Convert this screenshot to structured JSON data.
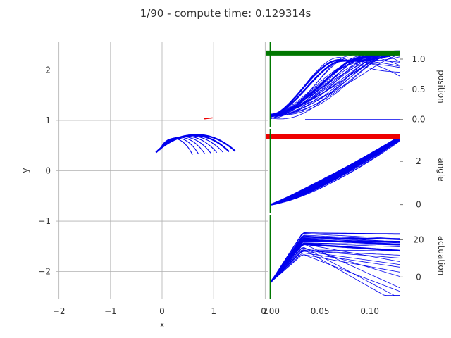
{
  "title": "1/90 - compute time: 0.129314s",
  "colors": {
    "traj": "#0000ee",
    "marker_red": "#ee0000",
    "marker_green": "#007700",
    "grid": "#b0b0b0"
  },
  "chart_data": [
    {
      "type": "line",
      "name": "xy",
      "xlabel": "x",
      "ylabel": "y",
      "xlim": [
        -2.05,
        2.05
      ],
      "ylim": [
        -2.55,
        2.55
      ],
      "xticks": [
        -2,
        -1,
        0,
        1,
        2
      ],
      "yticks": [
        -2,
        -1,
        0,
        1,
        2
      ],
      "xticklabels": [
        "−2",
        "−1",
        "0",
        "1",
        "2"
      ],
      "yticklabels": [
        "−2",
        "−1",
        "0",
        "1",
        "2"
      ],
      "grid": true,
      "arm_length": 1.05,
      "angle_range": [
        1.8,
        3.2
      ],
      "arm_count": 8,
      "red_segment": {
        "x": [
          0.82,
          0.98
        ],
        "y": [
          1.03,
          1.05
        ]
      }
    },
    {
      "type": "line",
      "name": "position",
      "ylabel": "position",
      "xlim": [
        -0.004,
        0.13
      ],
      "ylim": [
        -0.12,
        1.28
      ],
      "yticks": [
        0.0,
        0.5,
        1.0
      ],
      "yticklabels": [
        "0.0",
        "0.5",
        "1.0"
      ],
      "target": 1.1,
      "time_marker": 0.0,
      "t_end": 0.13
    },
    {
      "type": "line",
      "name": "angle",
      "ylabel": "angle",
      "xlim": [
        -0.004,
        0.13
      ],
      "ylim": [
        -0.4,
        3.5
      ],
      "yticks": [
        0,
        2
      ],
      "yticklabels": [
        "0",
        "2"
      ],
      "target": 3.14,
      "time_marker": 0.0,
      "t_end": 0.13
    },
    {
      "type": "line",
      "name": "actuation",
      "ylabel": "actuation",
      "xlabel": "",
      "xlim": [
        -0.004,
        0.13
      ],
      "ylim": [
        -12,
        33
      ],
      "yticks": [
        0,
        20
      ],
      "yticklabels": [
        "0",
        "20"
      ],
      "xticks": [
        0.0,
        0.05,
        0.1
      ],
      "xticklabels": [
        "0.00",
        "0.05",
        "0.10"
      ],
      "time_marker": 0.0,
      "t_end": 0.13
    }
  ]
}
